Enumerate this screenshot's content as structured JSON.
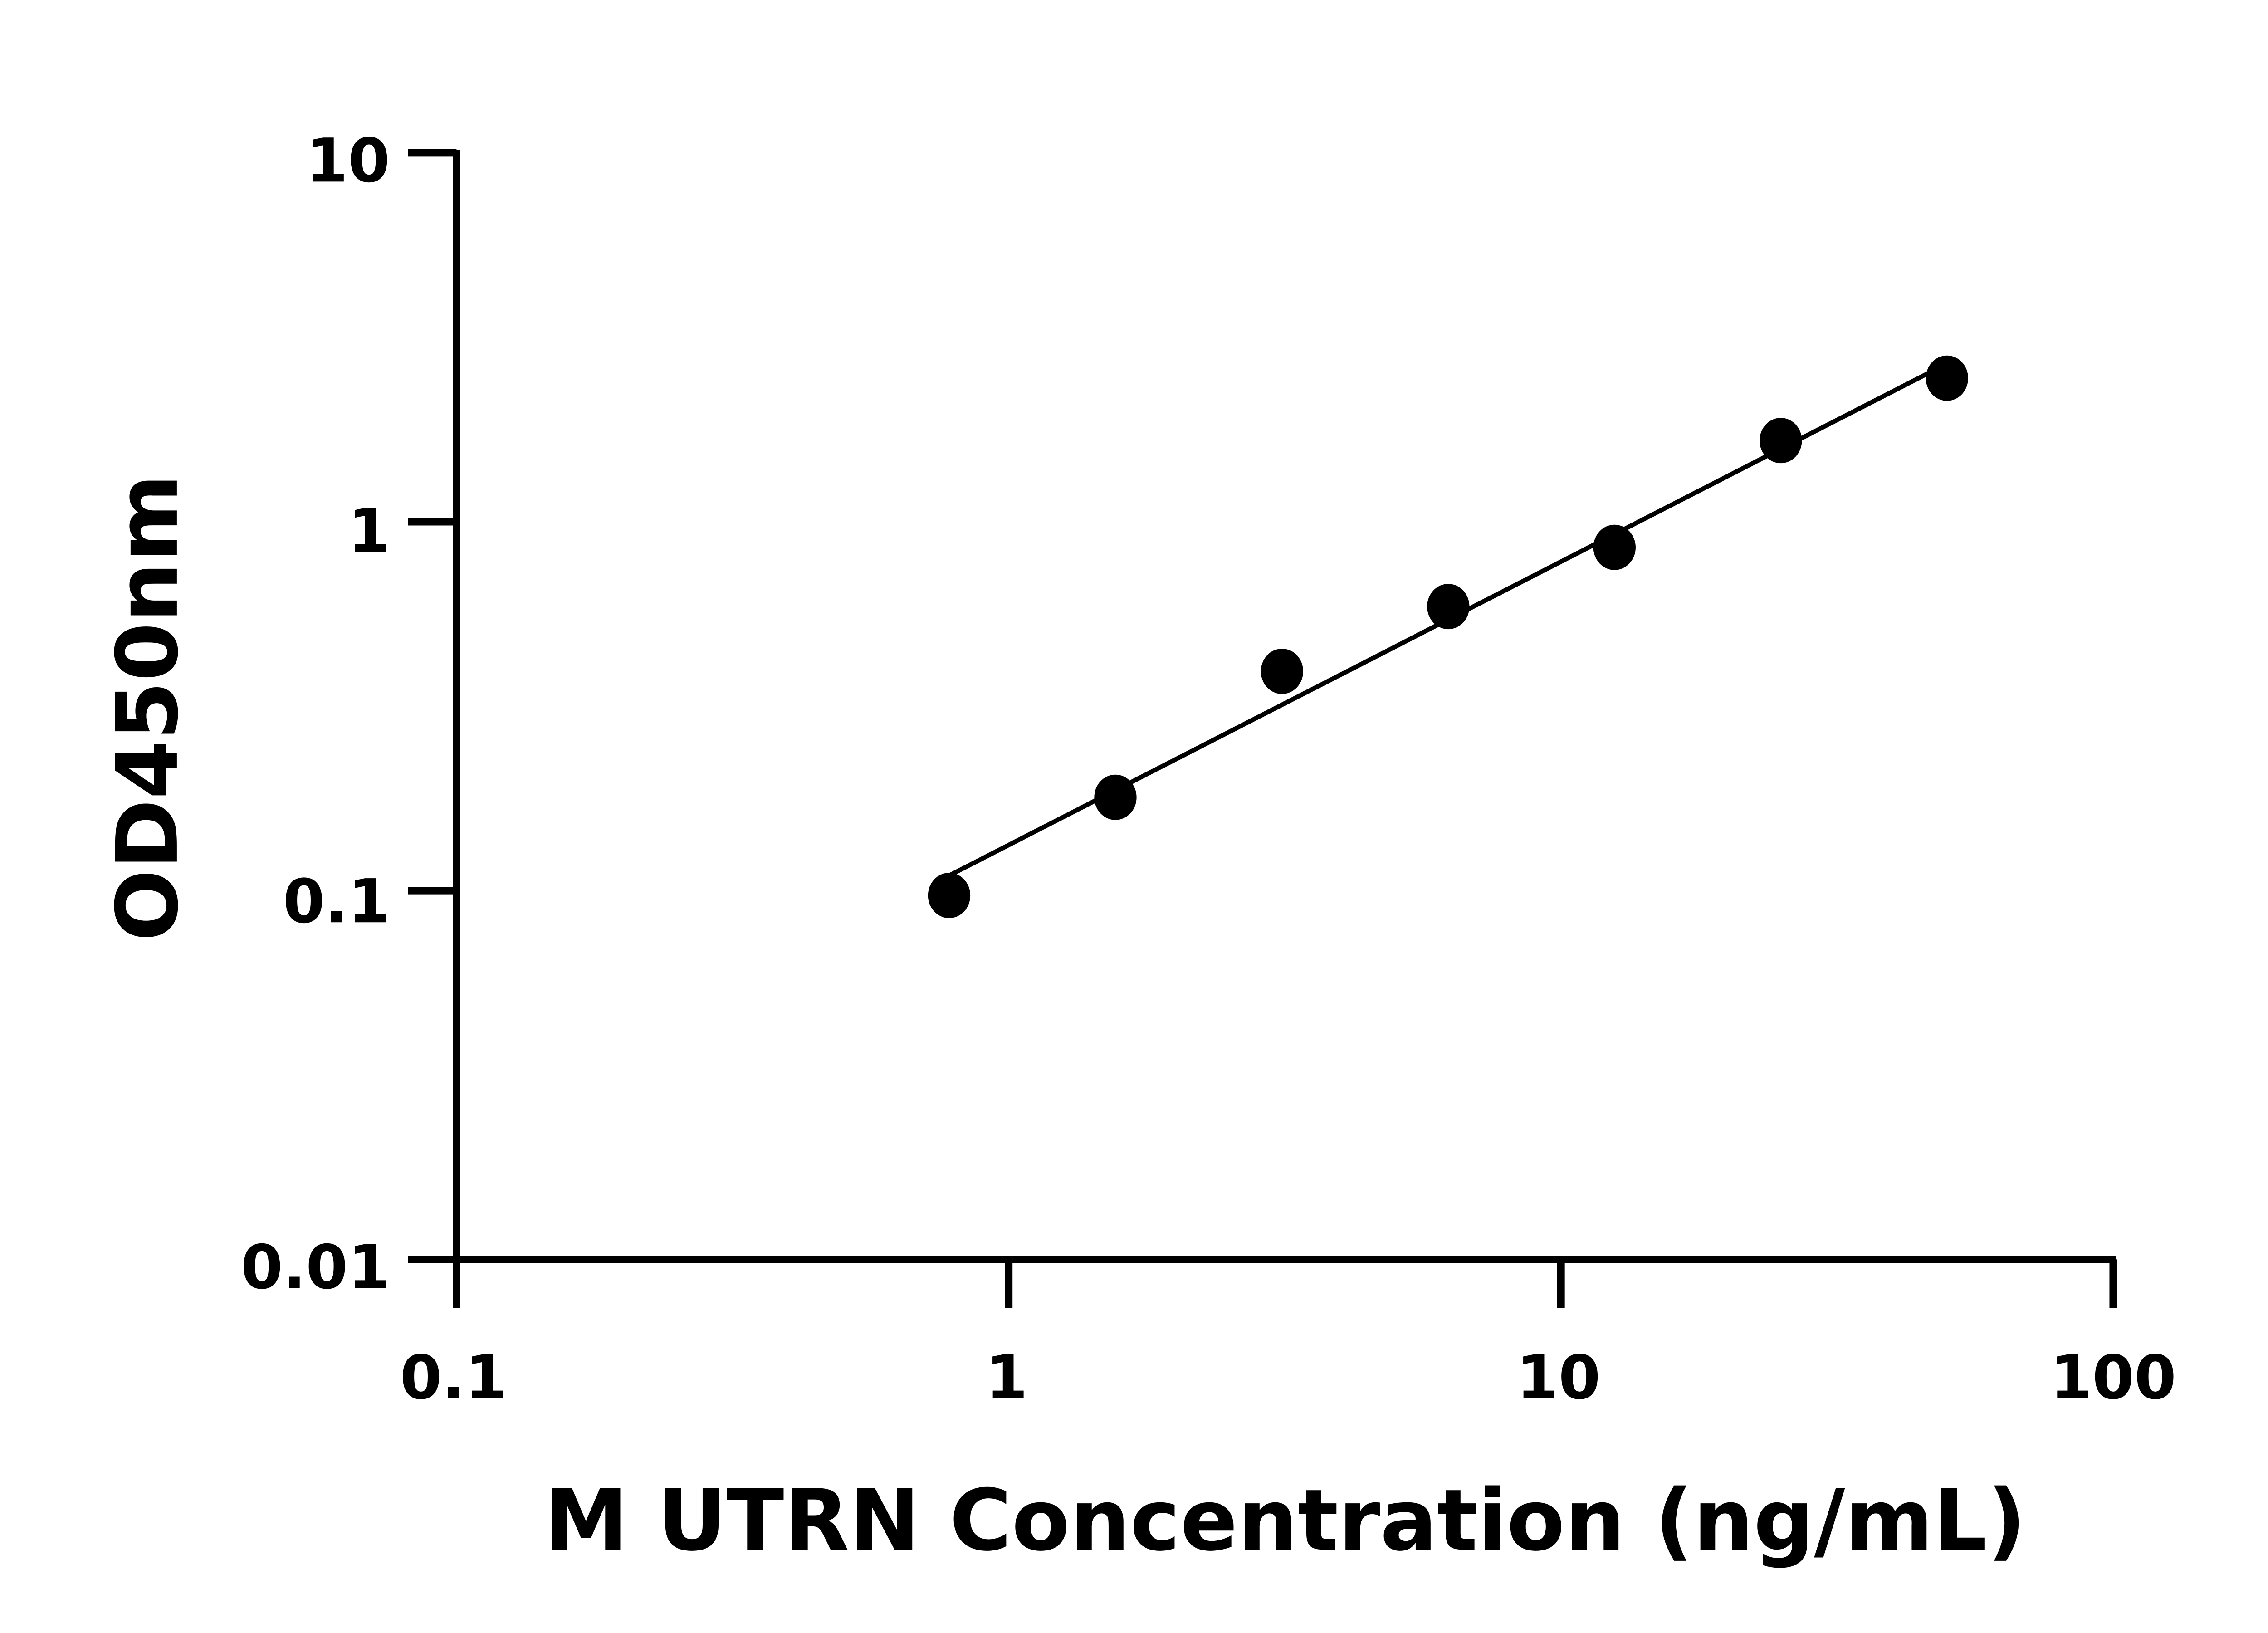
{
  "chart_data": {
    "type": "scatter",
    "title": "",
    "xlabel": "M UTRN Concentration (ng/mL)",
    "ylabel": "OD450nm",
    "x_scale": "log",
    "y_scale": "log",
    "xlim": [
      0.1,
      100
    ],
    "ylim": [
      0.01,
      10
    ],
    "x_ticks": [
      "0.1",
      "1",
      "10",
      "100"
    ],
    "y_ticks": [
      "0.01",
      "0.1",
      "1",
      "10"
    ],
    "grid": false,
    "legend": "none",
    "fit_line": true,
    "color": "#000000",
    "series": [
      {
        "x": [
          0.78,
          1.56,
          3.125,
          6.25,
          12.5,
          25,
          50
        ],
        "y": [
          0.097,
          0.179,
          0.393,
          0.589,
          0.852,
          1.66,
          2.45
        ]
      }
    ]
  }
}
